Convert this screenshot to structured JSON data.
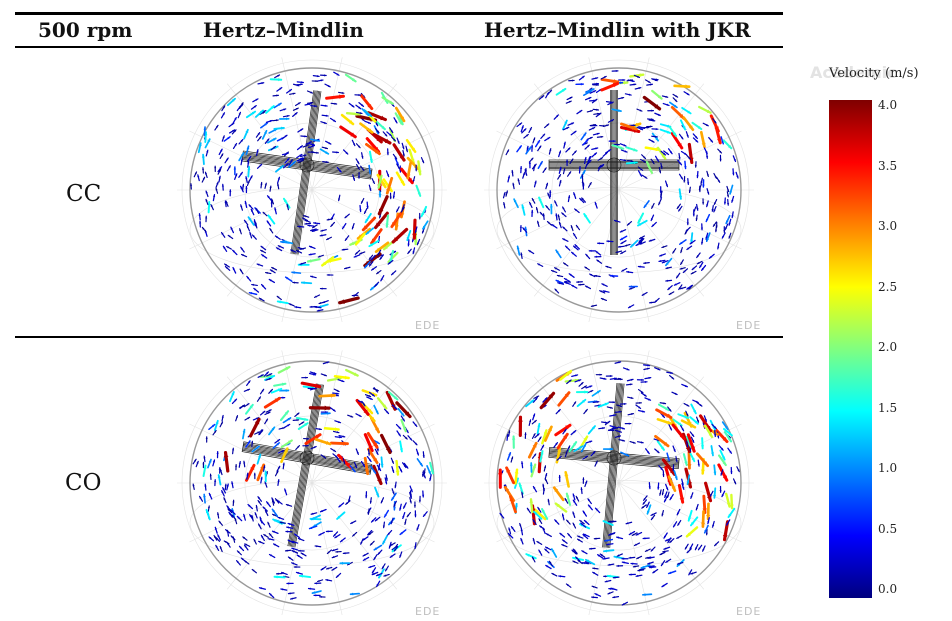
{
  "header": {
    "corner": "500 rpm",
    "col1": "Hertz–Mindlin",
    "col2": "Hertz–Mindlin with JKR"
  },
  "rows": [
    {
      "label": "CC"
    },
    {
      "label": "CO"
    }
  ],
  "cell_mark": "EDE",
  "watermark": "Academic",
  "legend": {
    "title": "Velocity (m/s)",
    "ticks": [
      "4.0",
      "3.5",
      "3.0",
      "2.5",
      "2.0",
      "1.5",
      "1.0",
      "0.5",
      "0.0"
    ],
    "min": 0.0,
    "max": 4.0
  },
  "colors": {
    "colormap": [
      "#00007f",
      "#0000ff",
      "#0080ff",
      "#00ffff",
      "#80ff80",
      "#ffff00",
      "#ff8000",
      "#ff0000",
      "#7f0000"
    ],
    "boundary": "#cfcfcf",
    "impeller": "#222222"
  }
}
